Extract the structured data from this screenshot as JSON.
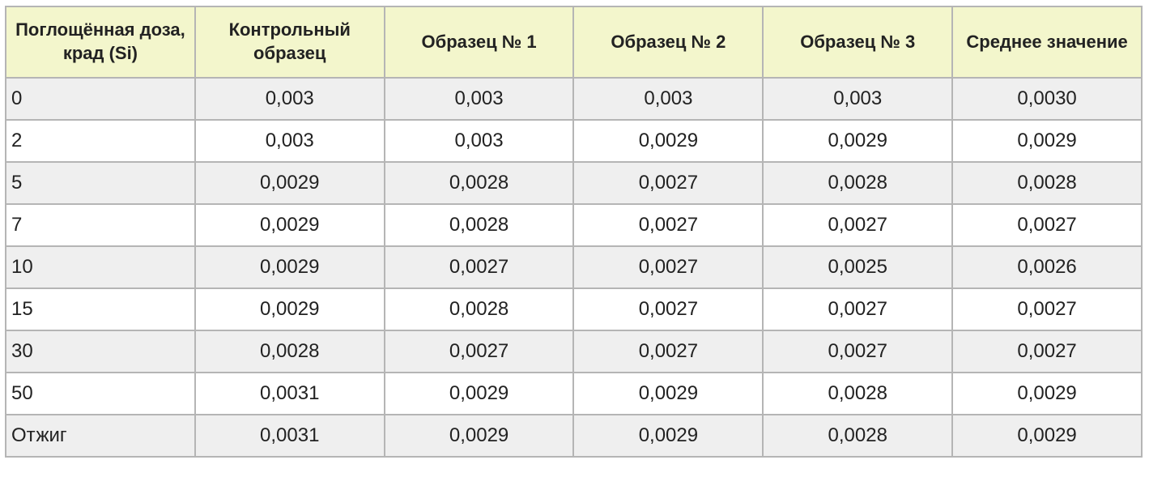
{
  "table": {
    "header": [
      "Поглощённая доза, крад (Si)",
      "Контрольный образец",
      "Образец № 1",
      "Образец № 2",
      "Образец № 3",
      "Среднее значение"
    ],
    "rows": [
      [
        "0",
        "0,003",
        "0,003",
        "0,003",
        "0,003",
        "0,0030"
      ],
      [
        "2",
        "0,003",
        "0,003",
        "0,0029",
        "0,0029",
        "0,0029"
      ],
      [
        "5",
        "0,0029",
        "0,0028",
        "0,0027",
        "0,0028",
        "0,0028"
      ],
      [
        "7",
        "0,0029",
        "0,0028",
        "0,0027",
        "0,0027",
        "0,0027"
      ],
      [
        "10",
        "0,0029",
        "0,0027",
        "0,0027",
        "0,0025",
        "0,0026"
      ],
      [
        "15",
        "0,0029",
        "0,0028",
        "0,0027",
        "0,0027",
        "0,0027"
      ],
      [
        "30",
        "0,0028",
        "0,0027",
        "0,0027",
        "0,0027",
        "0,0027"
      ],
      [
        "50",
        "0,0031",
        "0,0029",
        "0,0029",
        "0,0028",
        "0,0029"
      ],
      [
        "Отжиг",
        "0,0031",
        "0,0029",
        "0,0029",
        "0,0028",
        "0,0029"
      ]
    ]
  }
}
